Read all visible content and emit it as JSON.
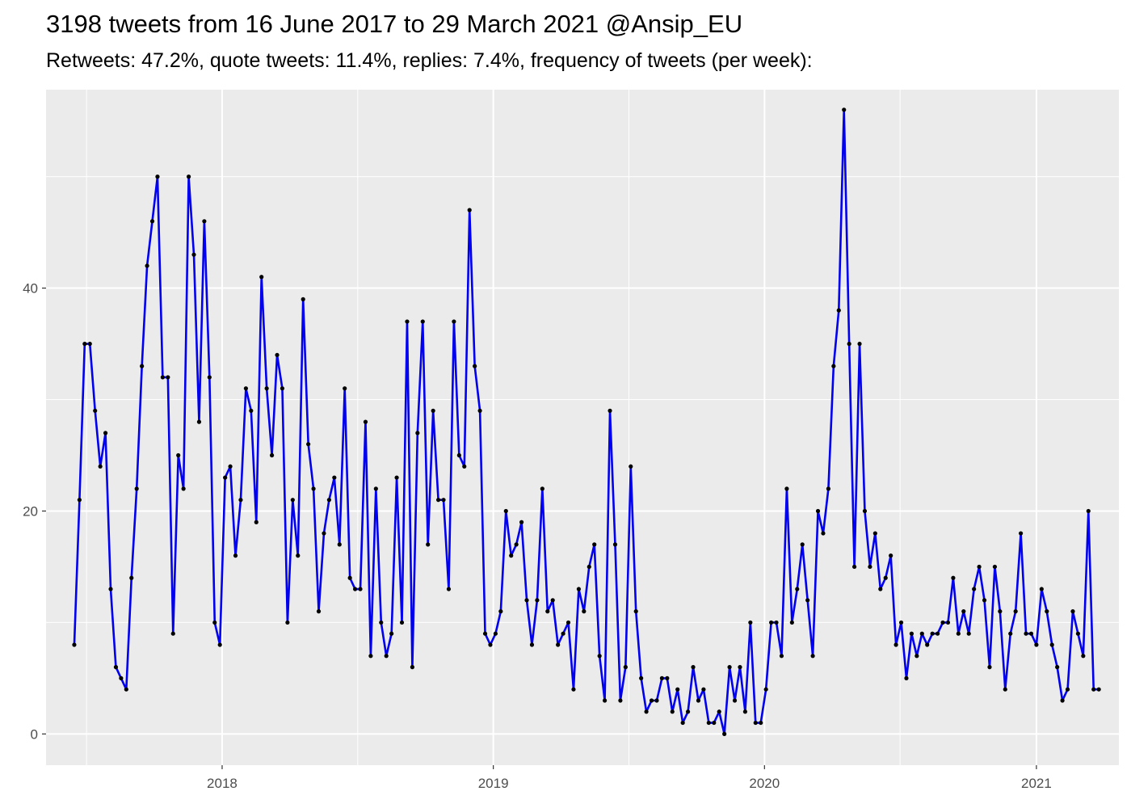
{
  "chart_data": {
    "type": "line",
    "title": "3198 tweets from 16 June 2017 to 29 March 2021 @Ansip_EU",
    "subtitle": "Retweets: 47.2%, quote tweets: 11.4%, replies: 7.4%, frequency of tweets (per week):",
    "xlabel": "",
    "ylabel": "",
    "x_start": "2017-06-16",
    "x_interval_days": 7,
    "xlim": [
      "2017-05-09",
      "2021-04-22"
    ],
    "ylim": [
      -2.8,
      57.8
    ],
    "x_ticks": [
      {
        "date": "2018-01-01",
        "label": "2018"
      },
      {
        "date": "2019-01-01",
        "label": "2019"
      },
      {
        "date": "2020-01-01",
        "label": "2020"
      },
      {
        "date": "2021-01-01",
        "label": "2021"
      }
    ],
    "y_ticks": [
      0,
      20,
      40
    ],
    "grid": true,
    "legend": "none",
    "line_color": "#0000ee",
    "point_color": "#000000",
    "values": [
      8,
      21,
      35,
      35,
      29,
      24,
      27,
      13,
      6,
      5,
      4,
      14,
      22,
      33,
      42,
      46,
      50,
      32,
      32,
      9,
      25,
      22,
      50,
      43,
      28,
      46,
      32,
      10,
      8,
      23,
      24,
      16,
      21,
      31,
      29,
      19,
      41,
      31,
      25,
      34,
      31,
      10,
      21,
      16,
      39,
      26,
      22,
      11,
      18,
      21,
      23,
      17,
      31,
      14,
      13,
      13,
      28,
      7,
      22,
      10,
      7,
      9,
      23,
      10,
      37,
      6,
      27,
      37,
      17,
      29,
      21,
      21,
      13,
      37,
      25,
      24,
      47,
      33,
      29,
      9,
      8,
      9,
      11,
      20,
      16,
      17,
      19,
      12,
      8,
      12,
      22,
      11,
      12,
      8,
      9,
      10,
      4,
      13,
      11,
      15,
      17,
      7,
      3,
      29,
      17,
      3,
      6,
      24,
      11,
      5,
      2,
      3,
      3,
      5,
      5,
      2,
      4,
      1,
      2,
      6,
      3,
      4,
      1,
      1,
      2,
      0,
      6,
      3,
      6,
      2,
      10,
      1,
      1,
      4,
      10,
      10,
      7,
      22,
      10,
      13,
      17,
      12,
      7,
      20,
      18,
      22,
      33,
      38,
      56,
      35,
      15,
      35,
      20,
      15,
      18,
      13,
      14,
      16,
      8,
      10,
      5,
      9,
      7,
      9,
      8,
      9,
      9,
      10,
      10,
      14,
      9,
      11,
      9,
      13,
      15,
      12,
      6,
      15,
      11,
      4,
      9,
      11,
      18,
      9,
      9,
      8,
      13,
      11,
      8,
      6,
      3,
      4,
      11,
      9,
      7,
      20,
      4,
      4
    ]
  }
}
